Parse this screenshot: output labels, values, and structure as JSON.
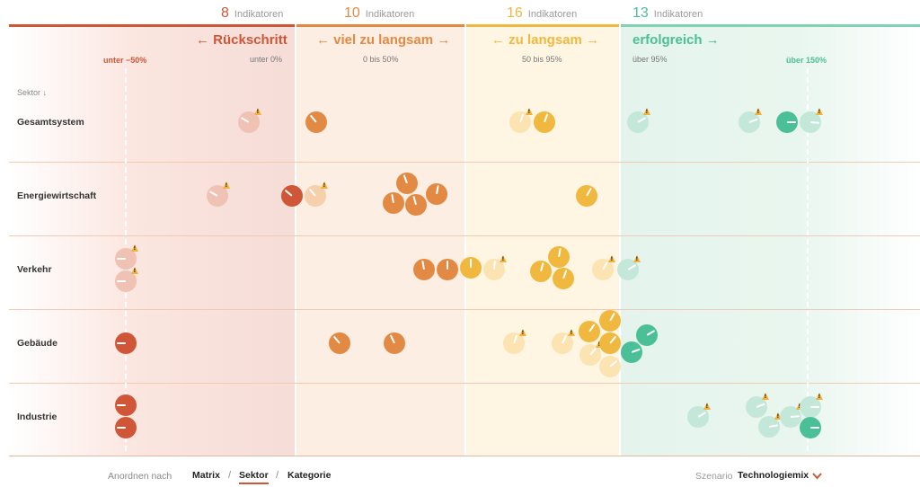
{
  "columns": [
    {
      "count": "8",
      "count_label": "Indikatoren",
      "title": "← Rückschritt",
      "range": "unter 0%",
      "color": "#cf5636"
    },
    {
      "count": "10",
      "count_label": "Indikatoren",
      "title": "← viel zu langsam →",
      "range": "0 bis 50%",
      "color": "#e28a44"
    },
    {
      "count": "16",
      "count_label": "Indikatoren",
      "title": "← zu langsam →",
      "range": "50 bis 95%",
      "color": "#f0b83e"
    },
    {
      "count": "13",
      "count_label": "Indikatoren",
      "title": "erfolgreich →",
      "range": "über 95%",
      "color": "#4bbf97"
    }
  ],
  "markers": {
    "low": "unter −50%",
    "high": "über 150%"
  },
  "sector_header": "Sektor ↓",
  "sectors": [
    "Gesamtsystem",
    "Energiewirtschaft",
    "Verkehr",
    "Gebäude",
    "Industrie"
  ],
  "footer": {
    "arrange_label": "Anordnen nach",
    "options": [
      "Matrix",
      "Sektor",
      "Kategorie"
    ],
    "active": "Sektor",
    "scenario_label": "Szenario",
    "scenario_value": "Technologiemix",
    "chevron": "chevron-down-icon"
  },
  "indicators": [
    {
      "sector": "Gesamtsystem",
      "cat": 1,
      "faded": true,
      "warn": true,
      "angle": -60
    },
    {
      "sector": "Gesamtsystem",
      "cat": 2,
      "faded": false,
      "warn": false,
      "angle": -40
    },
    {
      "sector": "Gesamtsystem",
      "cat": 3,
      "faded": true,
      "warn": true,
      "angle": 20
    },
    {
      "sector": "Gesamtsystem",
      "cat": 3,
      "faded": false,
      "warn": false,
      "angle": 20
    },
    {
      "sector": "Gesamtsystem",
      "cat": 4,
      "faded": true,
      "warn": true,
      "angle": 60
    },
    {
      "sector": "Gesamtsystem",
      "cat": 4,
      "faded": true,
      "warn": true,
      "angle": 70
    },
    {
      "sector": "Gesamtsystem",
      "cat": 4,
      "faded": false,
      "warn": false,
      "angle": 90
    },
    {
      "sector": "Gesamtsystem",
      "cat": 4,
      "faded": true,
      "warn": true,
      "angle": 95
    },
    {
      "sector": "Energiewirtschaft",
      "cat": 1,
      "faded": true,
      "warn": true,
      "angle": -60
    },
    {
      "sector": "Energiewirtschaft",
      "cat": 1,
      "faded": false,
      "warn": false,
      "angle": -50
    },
    {
      "sector": "Energiewirtschaft",
      "cat": 2,
      "faded": true,
      "warn": true,
      "angle": -40
    },
    {
      "sector": "Energiewirtschaft",
      "cat": 2,
      "faded": false,
      "warn": false,
      "angle": -20
    },
    {
      "sector": "Energiewirtschaft",
      "cat": 2,
      "faded": false,
      "warn": false,
      "angle": -10
    },
    {
      "sector": "Energiewirtschaft",
      "cat": 2,
      "faded": false,
      "warn": false,
      "angle": -15
    },
    {
      "sector": "Energiewirtschaft",
      "cat": 2,
      "faded": false,
      "warn": false,
      "angle": 10
    },
    {
      "sector": "Energiewirtschaft",
      "cat": 3,
      "faded": false,
      "warn": false,
      "angle": 30
    },
    {
      "sector": "Verkehr",
      "cat": 1,
      "faded": true,
      "warn": true,
      "angle": -90
    },
    {
      "sector": "Verkehr",
      "cat": 1,
      "faded": true,
      "warn": true,
      "angle": -90
    },
    {
      "sector": "Verkehr",
      "cat": 2,
      "faded": false,
      "warn": false,
      "angle": -10
    },
    {
      "sector": "Verkehr",
      "cat": 2,
      "faded": false,
      "warn": false,
      "angle": 0
    },
    {
      "sector": "Verkehr",
      "cat": 3,
      "faded": false,
      "warn": false,
      "angle": 0
    },
    {
      "sector": "Verkehr",
      "cat": 3,
      "faded": true,
      "warn": true,
      "angle": 5
    },
    {
      "sector": "Verkehr",
      "cat": 3,
      "faded": false,
      "warn": false,
      "angle": 10
    },
    {
      "sector": "Verkehr",
      "cat": 3,
      "faded": false,
      "warn": false,
      "angle": 15
    },
    {
      "sector": "Verkehr",
      "cat": 3,
      "faded": false,
      "warn": false,
      "angle": 20
    },
    {
      "sector": "Verkehr",
      "cat": 3,
      "faded": true,
      "warn": true,
      "angle": 30
    },
    {
      "sector": "Verkehr",
      "cat": 4,
      "faded": true,
      "warn": true,
      "angle": 60
    },
    {
      "sector": "Gebäude",
      "cat": 1,
      "faded": false,
      "warn": false,
      "angle": -90
    },
    {
      "sector": "Gebäude",
      "cat": 2,
      "faded": false,
      "warn": false,
      "angle": -40
    },
    {
      "sector": "Gebäude",
      "cat": 2,
      "faded": false,
      "warn": false,
      "angle": -25
    },
    {
      "sector": "Gebäude",
      "cat": 3,
      "faded": true,
      "warn": true,
      "angle": 20
    },
    {
      "sector": "Gebäude",
      "cat": 3,
      "faded": true,
      "warn": true,
      "angle": 25
    },
    {
      "sector": "Gebäude",
      "cat": 3,
      "faded": false,
      "warn": false,
      "angle": 30
    },
    {
      "sector": "Gebäude",
      "cat": 3,
      "faded": false,
      "warn": false,
      "angle": 35
    },
    {
      "sector": "Gebäude",
      "cat": 3,
      "faded": true,
      "warn": true,
      "angle": 40
    },
    {
      "sector": "Gebäude",
      "cat": 3,
      "faded": false,
      "warn": false,
      "angle": 40
    },
    {
      "sector": "Gebäude",
      "cat": 3,
      "faded": true,
      "warn": false,
      "angle": 50
    },
    {
      "sector": "Gebäude",
      "cat": 4,
      "faded": false,
      "warn": false,
      "angle": 60
    },
    {
      "sector": "Gebäude",
      "cat": 4,
      "faded": false,
      "warn": false,
      "angle": 70
    },
    {
      "sector": "Industrie",
      "cat": 1,
      "faded": false,
      "warn": false,
      "angle": -90
    },
    {
      "sector": "Industrie",
      "cat": 1,
      "faded": false,
      "warn": false,
      "angle": -90
    },
    {
      "sector": "Industrie",
      "cat": 4,
      "faded": true,
      "warn": true,
      "angle": 60
    },
    {
      "sector": "Industrie",
      "cat": 4,
      "faded": true,
      "warn": true,
      "angle": 70
    },
    {
      "sector": "Industrie",
      "cat": 4,
      "faded": true,
      "warn": true,
      "angle": 80
    },
    {
      "sector": "Industrie",
      "cat": 4,
      "faded": true,
      "warn": true,
      "angle": 85
    },
    {
      "sector": "Industrie",
      "cat": 4,
      "faded": true,
      "warn": true,
      "angle": 90
    },
    {
      "sector": "Industrie",
      "cat": 4,
      "faded": false,
      "warn": false,
      "angle": 90
    }
  ]
}
